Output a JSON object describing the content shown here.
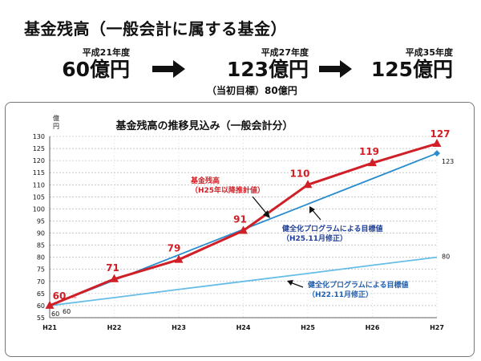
{
  "header": {
    "title": "基金残高（一般会計に属する基金）",
    "stages": [
      {
        "era": "平成21年度",
        "amount": "60億円"
      },
      {
        "era": "平成27年度",
        "amount": "123億円"
      },
      {
        "era": "平成35年度",
        "amount": "125億円"
      }
    ],
    "note": "（当初目標）80億円"
  },
  "chart_data": {
    "type": "line",
    "title": "基金残高の推移見込み（一般会計分）",
    "ylabel": "億円",
    "xlabel": "",
    "categories": [
      "H21",
      "H22",
      "H23",
      "H24",
      "H25",
      "H26",
      "H27"
    ],
    "ylim": [
      55,
      130
    ],
    "ytick_step": 5,
    "grid": true,
    "series": [
      {
        "name": "基金残高（H25年以降推計値）",
        "color": "#d01f26",
        "marker": "triangle",
        "values": [
          60,
          71,
          79,
          91,
          110,
          119,
          127
        ],
        "labels": [
          "60",
          "71",
          "79",
          "91",
          "110",
          "119",
          "127"
        ]
      },
      {
        "name": "健全化プログラムによる目標値（H25.11月修正）",
        "color": "#2a8ccc",
        "marker": "diamond",
        "values": [
          60,
          70.5,
          81,
          91.5,
          102,
          112.5,
          123
        ],
        "end_label": "123"
      },
      {
        "name": "健全化プログラムによる目標値（H22.11月修正）",
        "color": "#66bde8",
        "marker": "none",
        "values": [
          60,
          63.3,
          66.7,
          70,
          73.3,
          76.7,
          80
        ],
        "end_label": "80"
      }
    ],
    "start_labels": [
      "60",
      "60"
    ],
    "annotations": [
      {
        "line1": "基金残高",
        "line2": "（H25年以降推計値）",
        "color": "#d01f26"
      },
      {
        "line1": "健全化プログラムによる目標値",
        "line2": "（H25.11月修正）",
        "color": "#1f3f99"
      },
      {
        "line1": "健全化プログラムによる目標値",
        "line2": "（H22.11月修正）",
        "color": "#1f5fb0"
      }
    ]
  }
}
